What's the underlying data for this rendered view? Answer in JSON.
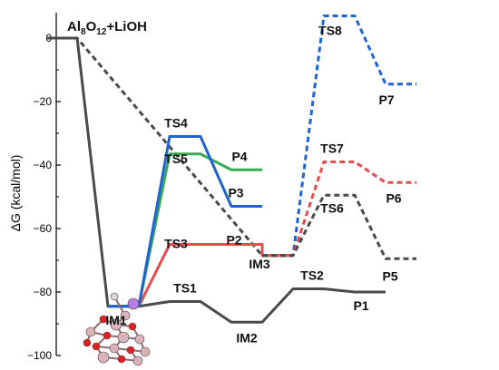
{
  "chart_data": {
    "type": "line",
    "title": "",
    "ylabel": "ΔG (kcal/mol)",
    "xlabel": "",
    "ylim": [
      -100,
      8
    ],
    "yticks": [
      0,
      -20,
      -40,
      -60,
      -80,
      -100
    ],
    "tick_labels": [
      "0",
      "−20",
      "−40",
      "−60",
      "−80",
      "−100"
    ],
    "grid": false,
    "legend": "none",
    "reactant_label": {
      "prefix": "Al",
      "sub1": "8",
      "mid": "O",
      "sub2": "12",
      "suffix": "+LiOH"
    },
    "series": [
      {
        "color": "#4a4a4a",
        "style": "solid",
        "points": [
          {
            "x": 1,
            "y": 0,
            "label": ""
          },
          {
            "x": 2,
            "y": -84.5,
            "label": "IM1"
          },
          {
            "x": 3,
            "y": -83,
            "label": "TS1"
          },
          {
            "x": 4,
            "y": -89.5,
            "label": "IM2"
          },
          {
            "x": 5,
            "y": -79,
            "label": "TS2"
          },
          {
            "x": 6,
            "y": -80,
            "label": "P1"
          }
        ]
      },
      {
        "color": "#4a4a4a",
        "style": "dashed",
        "points": [
          {
            "x": 1,
            "y": 0,
            "label": ""
          },
          {
            "x": 4.5,
            "y": -68.5,
            "label": "IM3"
          }
        ]
      },
      {
        "color": "#e84b4b",
        "style": "solid",
        "points": [
          {
            "x": 2,
            "y": -84.5,
            "label": ""
          },
          {
            "x": 3,
            "y": -65,
            "label": "TS3"
          },
          {
            "x": 4,
            "y": -65,
            "label": "P2"
          },
          {
            "x": 4.5,
            "y": -68.5,
            "label": ""
          }
        ]
      },
      {
        "color": "#3aaa55",
        "style": "solid",
        "points": [
          {
            "x": 2,
            "y": -84.5,
            "label": ""
          },
          {
            "x": 3,
            "y": -36.5,
            "label": "TS5"
          },
          {
            "x": 4,
            "y": -41.5,
            "label": "P4"
          }
        ]
      },
      {
        "color": "#1f62d0",
        "style": "solid",
        "points": [
          {
            "x": 2,
            "y": -84.5,
            "label": ""
          },
          {
            "x": 3,
            "y": -31,
            "label": "TS4"
          },
          {
            "x": 4,
            "y": -53,
            "label": "P3"
          }
        ]
      },
      {
        "color": "#1f62d0",
        "style": "dashed",
        "points": [
          {
            "x": 4.5,
            "y": -68.5,
            "label": ""
          },
          {
            "x": 5.5,
            "y": 7,
            "label": "TS8"
          },
          {
            "x": 6.5,
            "y": -14.5,
            "label": "P7"
          }
        ]
      },
      {
        "color": "#e84b4b",
        "style": "dashed",
        "points": [
          {
            "x": 4.5,
            "y": -68.5,
            "label": ""
          },
          {
            "x": 5.5,
            "y": -39,
            "label": "TS7"
          },
          {
            "x": 6.5,
            "y": -45.5,
            "label": "P6"
          }
        ]
      },
      {
        "color": "#4a4a4a",
        "style": "dashed",
        "points": [
          {
            "x": 4.5,
            "y": -68.5,
            "label": ""
          },
          {
            "x": 5.5,
            "y": -49.5,
            "label": "TS6"
          },
          {
            "x": 6.5,
            "y": -69.5,
            "label": "P5"
          }
        ]
      }
    ]
  },
  "colors": {
    "gray": "#4a4a4a",
    "red": "#e84b4b",
    "green": "#3aaa55",
    "blue": "#1f62d0"
  }
}
